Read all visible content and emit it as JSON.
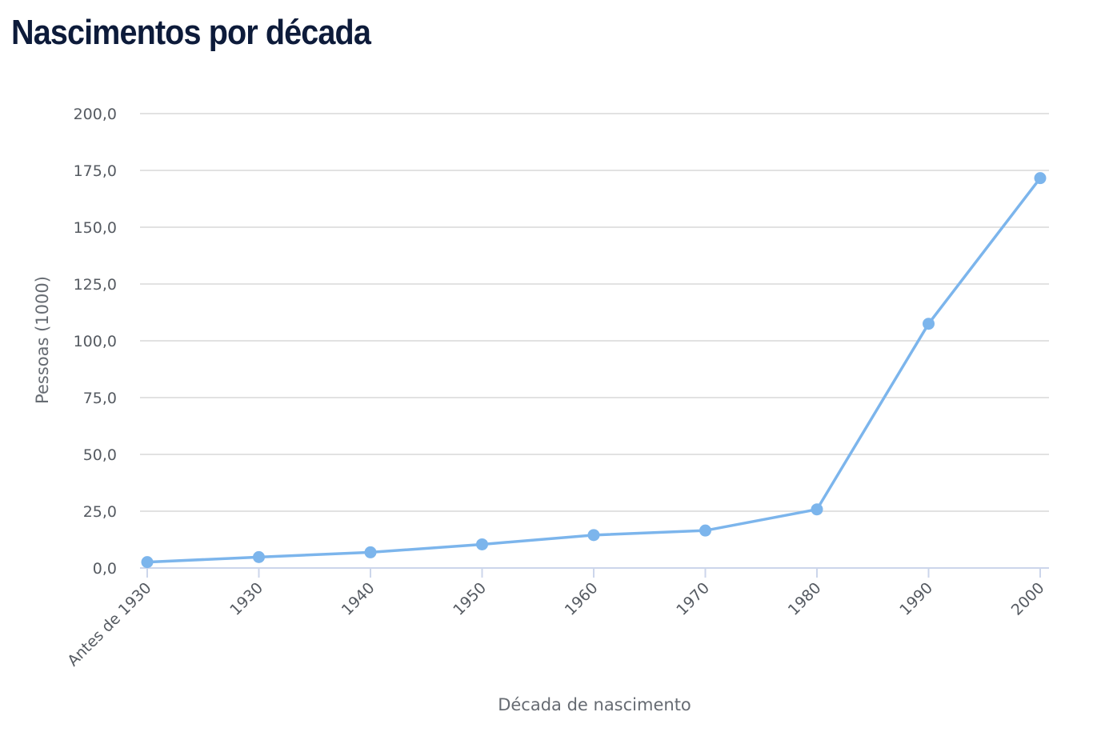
{
  "chart_data": {
    "type": "line",
    "title": "Nascimentos por década",
    "xlabel": "Década de nascimento",
    "ylabel": "Pessoas (1000)",
    "categories": [
      "Antes de 1930",
      "1930",
      "1940",
      "1950",
      "1960",
      "1970",
      "1980",
      "1990",
      "2000"
    ],
    "series": [
      {
        "values": [
          2.6,
          4.8,
          6.9,
          10.4,
          14.5,
          16.5,
          25.8,
          107.5,
          171.6
        ]
      }
    ],
    "ylim": [
      0,
      200
    ],
    "yticks": [
      0,
      25,
      50,
      75,
      100,
      125,
      150,
      175,
      200
    ],
    "ytick_labels": [
      "0,0",
      "25,0",
      "50,0",
      "75,0",
      "100,0",
      "125,0",
      "150,0",
      "175,0",
      "200,0"
    ],
    "grid": true,
    "legend": "none",
    "colors": {
      "line": "#7cb5ec",
      "grid": "#d8d8d8",
      "axis": "#ccd6eb",
      "title": "#0d1b3a"
    }
  }
}
